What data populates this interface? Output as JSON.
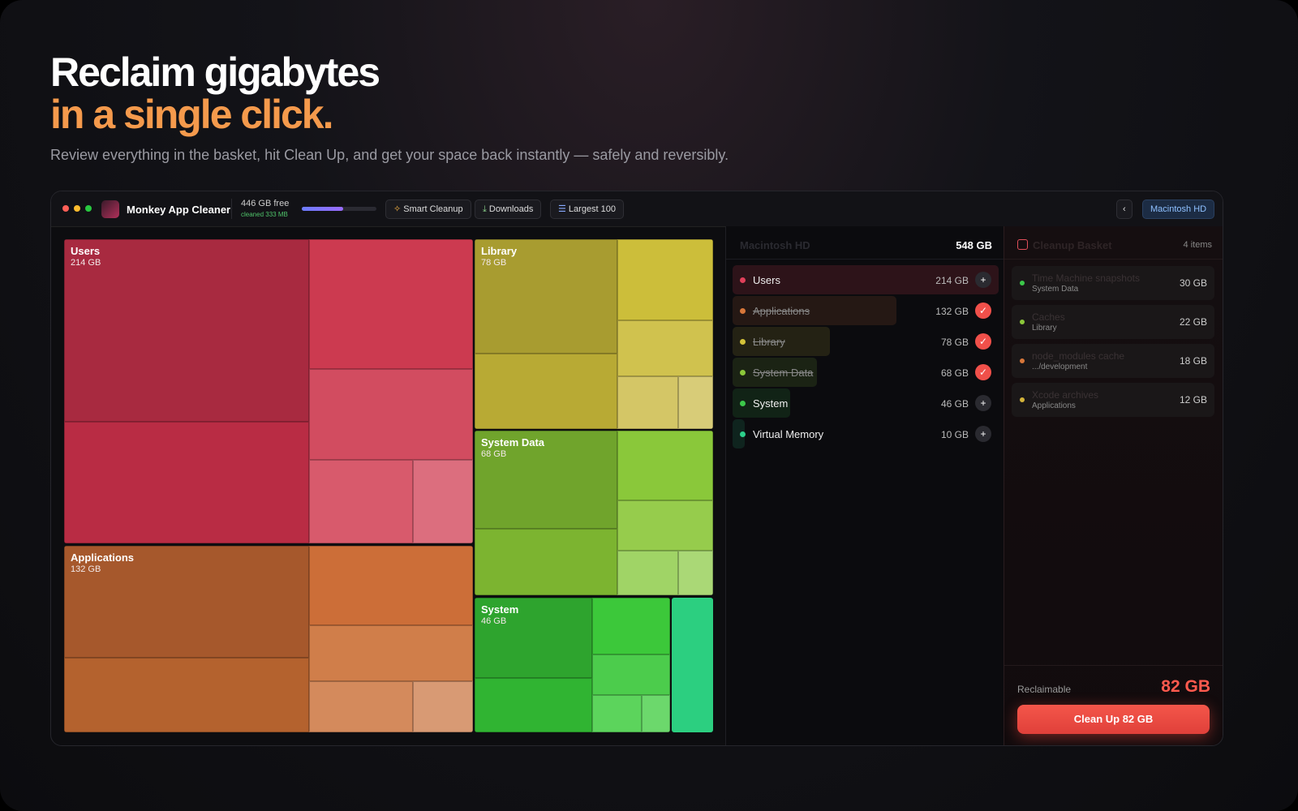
{
  "header": {
    "title_line1": "Reclaim gigabytes",
    "title_line2": "in a single click.",
    "subtitle": "Review everything in the basket, hit Clean Up, and get your space back instantly — safely and reversibly."
  },
  "toolbar": {
    "app_name": "Monkey App Cleaner",
    "free": "446 GB free",
    "cleaned": "cleaned 333 MB",
    "buttons": [
      "Smart Cleanup",
      "Downloads",
      "Largest 100"
    ],
    "back": "‹",
    "disk": "Macintosh HD"
  },
  "treemap": {
    "blocks": [
      {
        "name": "Users",
        "size": "214 GB"
      },
      {
        "name": "Applications",
        "size": "132 GB"
      },
      {
        "name": "Library",
        "size": "78 GB"
      },
      {
        "name": "System Data",
        "size": "68 GB"
      },
      {
        "name": "System",
        "size": "46 GB"
      }
    ]
  },
  "volume": {
    "title": "Macintosh HD",
    "total": "548 GB",
    "items": [
      {
        "name": "Users",
        "size": {
          "value": 214,
          "label": "214 GB"
        },
        "color": "#e0405a",
        "selected": false
      },
      {
        "name": "Applications",
        "size": {
          "value": 132,
          "label": "132 GB"
        },
        "color": "#d8773a",
        "selected": true
      },
      {
        "name": "Library",
        "size": {
          "value": 78,
          "label": "78 GB"
        },
        "color": "#d4c23a",
        "selected": true
      },
      {
        "name": "System Data",
        "size": {
          "value": 68,
          "label": "68 GB"
        },
        "color": "#8cc83a",
        "selected": true
      },
      {
        "name": "System",
        "size": {
          "value": 46,
          "label": "46 GB"
        },
        "color": "#3cc84a",
        "selected": false
      },
      {
        "name": "Virtual Memory",
        "size": {
          "value": 10,
          "label": "10 GB"
        },
        "color": "#2ccf8a",
        "selected": false
      }
    ]
  },
  "basket": {
    "title": "Cleanup Basket",
    "count": "4 items",
    "items": [
      {
        "name": "Time Machine snapshots",
        "source": "System Data",
        "size": "30 GB",
        "color": "#3cc84a"
      },
      {
        "name": "Caches",
        "source": "Library",
        "size": "22 GB",
        "color": "#8cc83a"
      },
      {
        "name": "node_modules cache",
        "source": ".../development",
        "size": "18 GB",
        "color": "#d8773a"
      },
      {
        "name": "Xcode archives",
        "source": "Applications",
        "size": "12 GB",
        "color": "#d4b43a"
      }
    ],
    "reclaimable_label": "Reclaimable",
    "reclaimable": "82 GB",
    "button": "Clean Up 82 GB"
  }
}
